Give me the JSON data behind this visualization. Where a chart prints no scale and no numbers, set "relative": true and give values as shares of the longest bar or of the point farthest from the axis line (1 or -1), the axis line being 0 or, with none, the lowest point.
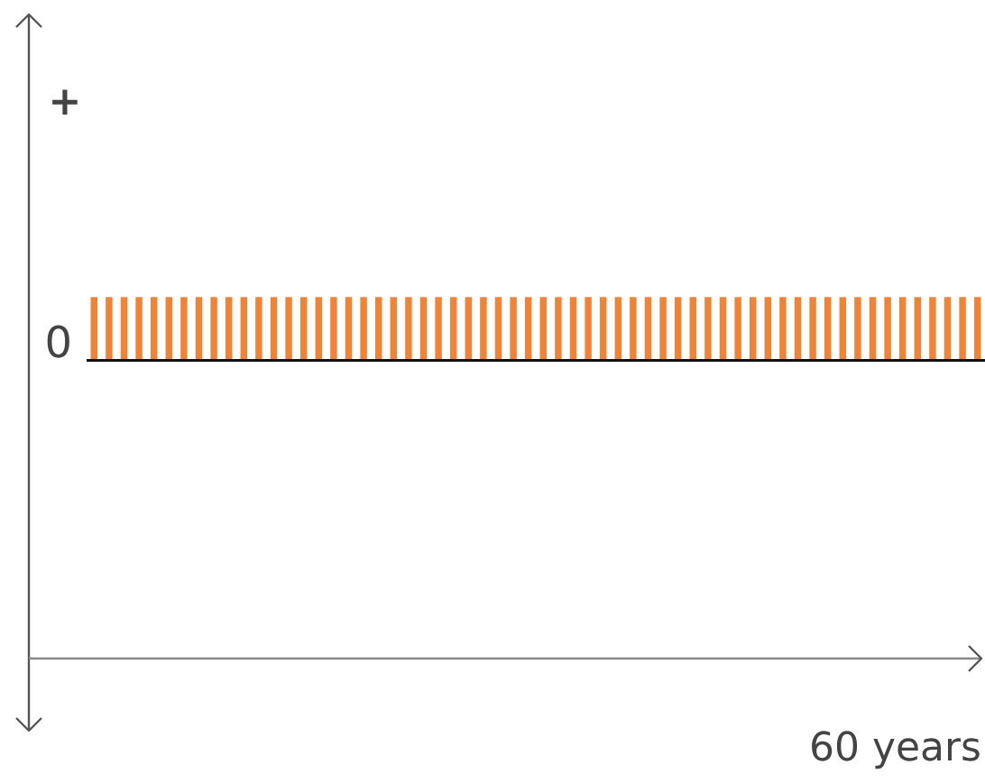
{
  "chart_data": {
    "type": "bar",
    "relative": true,
    "annotations": [
      "+",
      "0",
      "60 years"
    ],
    "categories": [
      null,
      null,
      null,
      null,
      null,
      null,
      null,
      null,
      null,
      null,
      null,
      null,
      null,
      null,
      null,
      null,
      null,
      null,
      null,
      null,
      null,
      null,
      null,
      null,
      null,
      null,
      null,
      null,
      null,
      null,
      null,
      null,
      null,
      null,
      null,
      null,
      null,
      null,
      null,
      null,
      null,
      null,
      null,
      null,
      null,
      null,
      null,
      null,
      null,
      null,
      null,
      null,
      null,
      null,
      null,
      null,
      null,
      null,
      null,
      null
    ],
    "values": [
      1,
      1,
      1,
      1,
      1,
      1,
      1,
      1,
      1,
      1,
      1,
      1,
      1,
      1,
      1,
      1,
      1,
      1,
      1,
      1,
      1,
      1,
      1,
      1,
      1,
      1,
      1,
      1,
      1,
      1,
      1,
      1,
      1,
      1,
      1,
      1,
      1,
      1,
      1,
      1,
      1,
      1,
      1,
      1,
      1,
      1,
      1,
      1,
      1,
      1,
      1,
      1,
      1,
      1,
      1,
      1,
      1,
      1,
      1,
      1
    ],
    "color": "#f28335"
  }
}
